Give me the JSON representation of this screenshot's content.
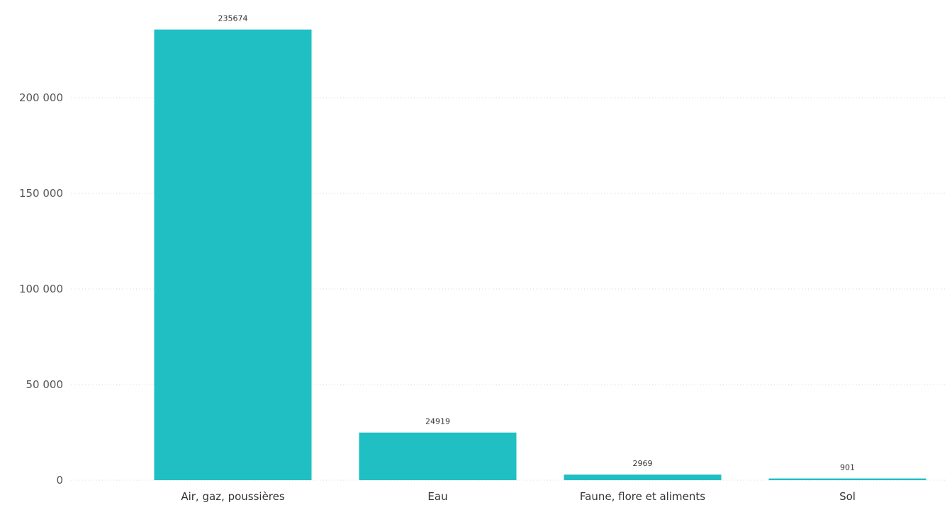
{
  "chart_data": {
    "type": "bar",
    "categories": [
      "Air, gaz, poussières",
      "Eau",
      "Faune, flore et aliments",
      "Sol"
    ],
    "values": [
      235674,
      24919,
      2969,
      901
    ],
    "data_labels": [
      "235674",
      "24919",
      "2969",
      "901"
    ],
    "y_ticks": [
      0,
      50000,
      100000,
      150000,
      200000
    ],
    "y_tick_labels": [
      "0",
      "50 000",
      "100 000",
      "150 000",
      "200 000"
    ],
    "ylim": [
      0,
      240000
    ],
    "grid": true,
    "bar_color": "#1FBFC4",
    "legend": "none"
  }
}
